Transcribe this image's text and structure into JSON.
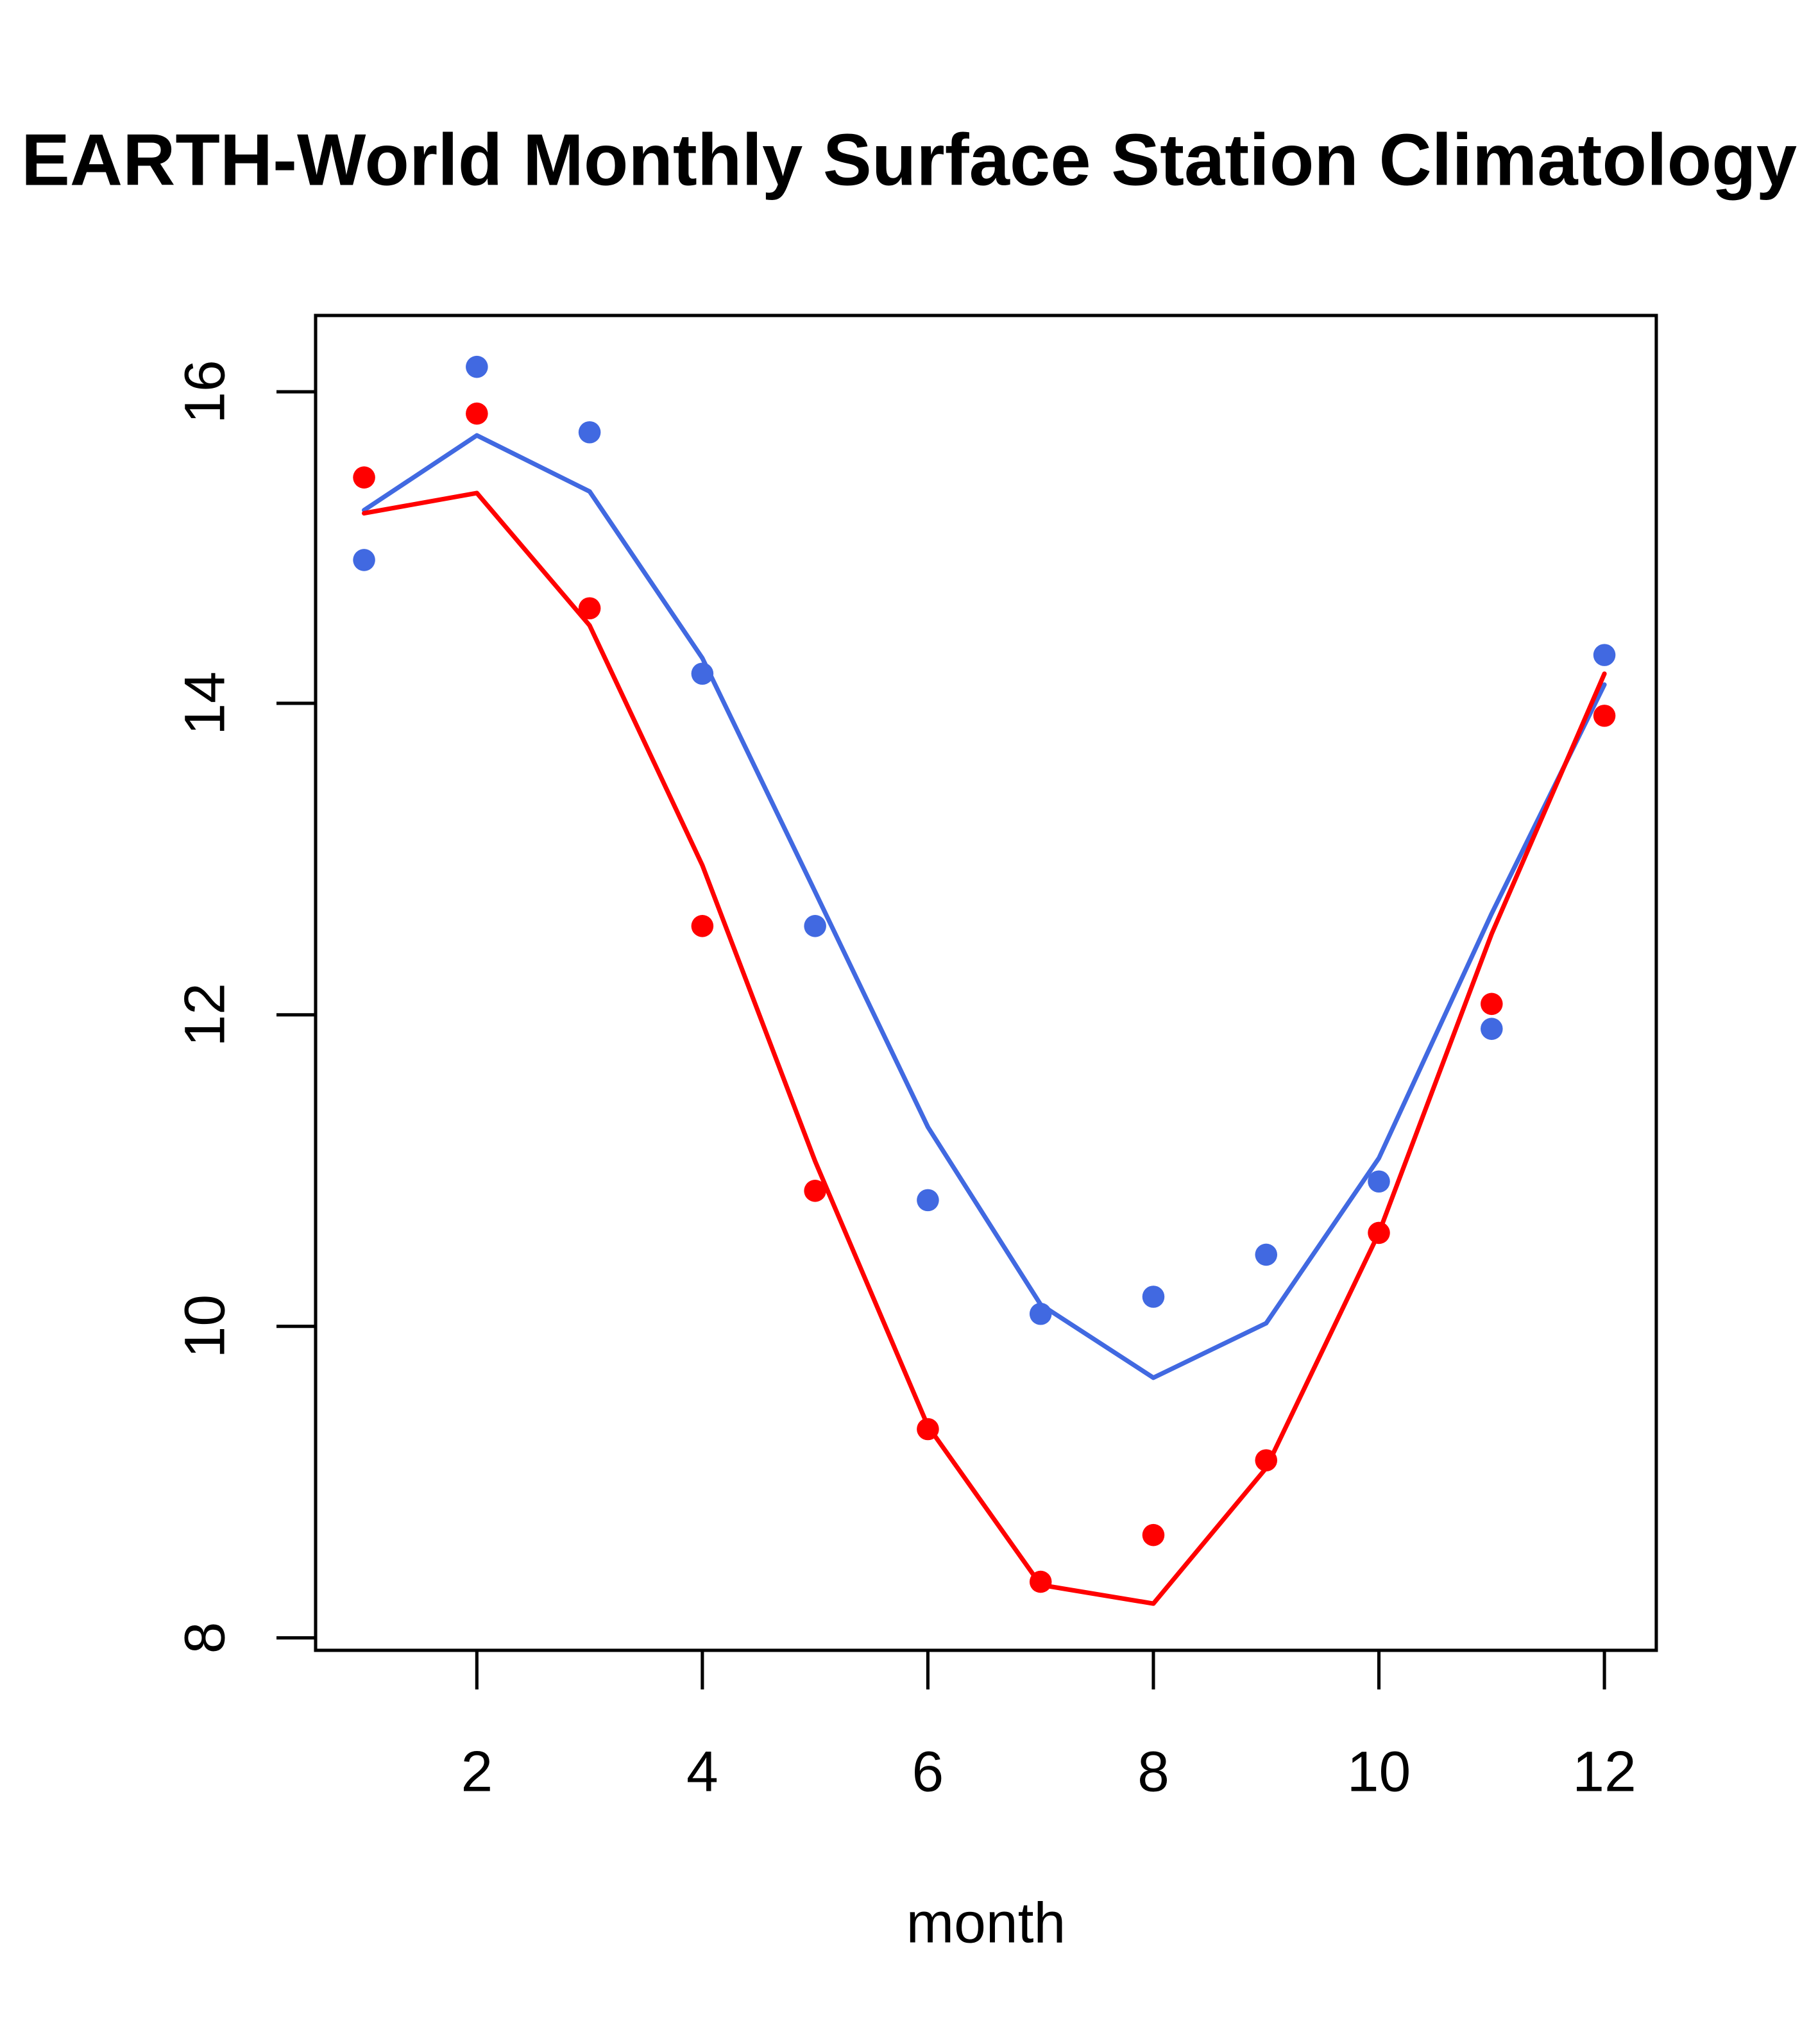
{
  "chart_data": {
    "type": "line",
    "title": "EARTH-World Monthly Surface Station Climatology",
    "xlabel": "month",
    "ylabel": "",
    "xlim": [
      0.57,
      12.46
    ],
    "ylim": [
      7.92,
      16.49
    ],
    "x_ticks": [
      2,
      4,
      6,
      8,
      10,
      12
    ],
    "y_ticks": [
      8,
      10,
      12,
      14,
      16
    ],
    "grid": false,
    "legend": null,
    "x": [
      1,
      2,
      3,
      4,
      5,
      6,
      7,
      8,
      9,
      10,
      11,
      12
    ],
    "series": [
      {
        "name": "blue-points",
        "kind": "scatter",
        "color": "#4169E1",
        "values": [
          14.92,
          16.16,
          15.74,
          14.19,
          12.57,
          10.81,
          10.08,
          10.19,
          10.46,
          10.93,
          11.91,
          14.31
        ]
      },
      {
        "name": "red-points",
        "kind": "scatter",
        "color": "#FF0000",
        "values": [
          15.45,
          15.86,
          14.61,
          12.57,
          10.87,
          9.34,
          8.36,
          8.66,
          9.14,
          10.6,
          12.07,
          13.92
        ]
      },
      {
        "name": "blue-line",
        "kind": "line",
        "color": "#4169E1",
        "values": [
          15.24,
          15.72,
          15.36,
          14.29,
          12.79,
          11.28,
          10.14,
          9.67,
          10.02,
          11.08,
          12.65,
          14.12
        ]
      },
      {
        "name": "red-line",
        "kind": "line",
        "color": "#FF0000",
        "values": [
          15.22,
          15.35,
          14.5,
          12.96,
          11.06,
          9.36,
          8.34,
          8.22,
          9.09,
          10.6,
          12.52,
          14.19
        ]
      }
    ]
  }
}
